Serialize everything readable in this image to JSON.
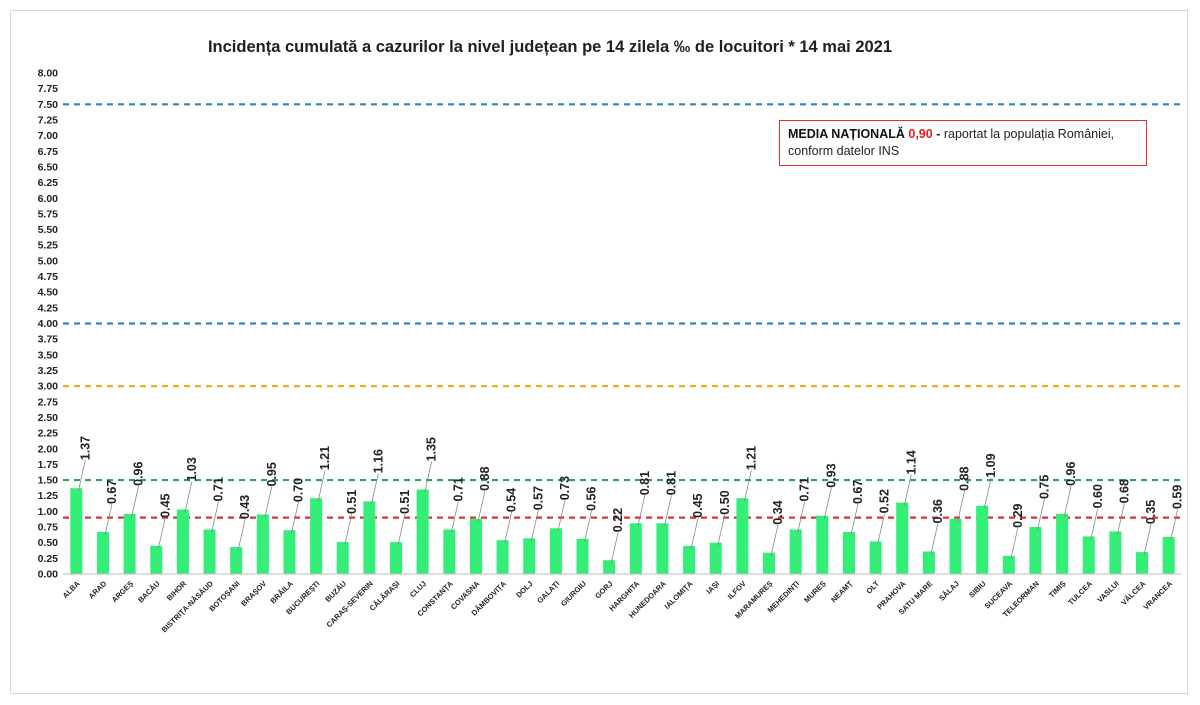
{
  "chart_data": {
    "type": "bar",
    "title": "Incidența cumulată a cazurilor la nivel județean pe 14 zilela ‰ de locuitori *  14 mai 2021",
    "categories": [
      "ALBA",
      "ARAD",
      "ARGEȘ",
      "BACĂU",
      "BIHOR",
      "BISTRIȚA-NĂSĂUD",
      "BOTOȘANI",
      "BRAȘOV",
      "BRĂILA",
      "BUCUREȘTI",
      "BUZĂU",
      "CARAȘ-SEVERIN",
      "CĂLĂRAȘI",
      "CLUJ",
      "CONSTANȚA",
      "COVASNA",
      "DÂMBOVIȚA",
      "DOLJ",
      "GALAȚI",
      "GIURGIU",
      "GORJ",
      "HARGHITA",
      "HUNEDOARA",
      "IALOMIȚA",
      "IAȘI",
      "ILFOV",
      "MARAMUREȘ",
      "MEHEDINȚI",
      "MUREȘ",
      "NEAMȚ",
      "OLT",
      "PRAHOVA",
      "SATU MARE",
      "SĂLAJ",
      "SIBIU",
      "SUCEAVA",
      "TELEORMAN",
      "TIMIȘ",
      "TULCEA",
      "VASLUI",
      "VÂLCEA",
      "VRANCEA"
    ],
    "values": [
      1.37,
      0.67,
      0.96,
      0.45,
      1.03,
      0.71,
      0.43,
      0.95,
      0.7,
      1.21,
      0.51,
      1.16,
      0.51,
      1.35,
      0.71,
      0.88,
      0.54,
      0.57,
      0.73,
      0.56,
      0.22,
      0.81,
      0.81,
      0.45,
      0.5,
      1.21,
      0.34,
      0.71,
      0.93,
      0.67,
      0.52,
      1.14,
      0.36,
      0.88,
      1.09,
      0.29,
      0.75,
      0.96,
      0.6,
      0.68,
      0.35,
      0.59
    ],
    "data_labels": [
      "1.37",
      "0.67",
      "0.96",
      "0.45",
      "1.03",
      "0.71",
      "0.43",
      "0.95",
      "0.70",
      "1.21",
      "0.51",
      "1.16",
      "0.51",
      "1.35",
      "0.71",
      "0.88",
      "0.54",
      "0.57",
      "0.73",
      "0.56",
      "0.22",
      "0.81",
      "0.81",
      "0.45",
      "0.50",
      "1.21",
      "0.34",
      "0.71",
      "0.93",
      "0.67",
      "0.52",
      "1.14",
      "0.36",
      "0.88",
      "1.09",
      "0.29",
      "0.75",
      "0.96",
      "0.60",
      "0.68",
      "0.35",
      "0.59"
    ],
    "ylim": [
      0,
      8
    ],
    "yticks": [
      "0.00",
      "0.25",
      "0.50",
      "0.75",
      "1.00",
      "1.25",
      "1.50",
      "1.75",
      "2.00",
      "2.25",
      "2.50",
      "2.75",
      "3.00",
      "3.25",
      "3.50",
      "3.75",
      "4.00",
      "4.25",
      "4.50",
      "4.75",
      "5.00",
      "5.25",
      "5.50",
      "5.75",
      "6.00",
      "6.25",
      "6.50",
      "6.75",
      "7.00",
      "7.25",
      "7.50",
      "7.75",
      "8.00"
    ],
    "bar_color": "#33ee77",
    "reference_lines": [
      {
        "value": 7.5,
        "color": "#2e86c1"
      },
      {
        "value": 4.0,
        "color": "#2e86c1"
      },
      {
        "value": 3.0,
        "color": "#e8b020"
      },
      {
        "value": 1.5,
        "color": "#2fa35a"
      },
      {
        "value": 0.9,
        "color": "#e03131"
      }
    ],
    "grid": false
  },
  "legend": {
    "label": "MEDIA NAȚIONALĂ",
    "value": "0,90",
    "dash": " -",
    "text1": " raportat la populația României,",
    "text2": "conform datelor INS"
  }
}
